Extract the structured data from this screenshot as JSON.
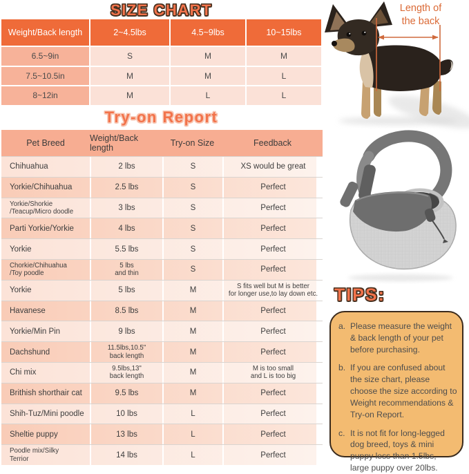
{
  "size_chart": {
    "title": "SIZE CHART",
    "columns": [
      "Weight/Back length",
      "2~4.5lbs",
      "4.5~9lbs",
      "10~15lbs"
    ],
    "rows": [
      {
        "label": "6.5~9in",
        "values": [
          "S",
          "M",
          "M"
        ]
      },
      {
        "label": "7.5~10.5in",
        "values": [
          "M",
          "M",
          "L"
        ]
      },
      {
        "label": "8~12in",
        "values": [
          "M",
          "L",
          "L"
        ]
      }
    ]
  },
  "tryon_report": {
    "title": "Try-on Report",
    "columns": [
      "Pet Breed",
      "Weight/Back length",
      "Try-on Size",
      "Feedback"
    ],
    "rows": [
      {
        "breed": "Chihuahua",
        "weight": "2 lbs",
        "size": "S",
        "feedback": "XS would be great"
      },
      {
        "breed": "Yorkie/Chihuahua",
        "weight": "2.5 lbs",
        "size": "S",
        "feedback": "Perfect"
      },
      {
        "breed": "Yorkie/Shorkie\n/Teacup/Micro doodle",
        "weight": "3 lbs",
        "size": "S",
        "feedback": "Perfect"
      },
      {
        "breed": "Parti Yorkie/Yorkie",
        "weight": "4 lbs",
        "size": "S",
        "feedback": "Perfect"
      },
      {
        "breed": "Yorkie",
        "weight": "5.5 lbs",
        "size": "S",
        "feedback": "Perfect"
      },
      {
        "breed": "Chorkie/Chihuahua\n/Toy poodle",
        "weight": "5 lbs\nand thin",
        "size": "S",
        "feedback": "Perfect"
      },
      {
        "breed": "Yorkie",
        "weight": "5 lbs",
        "size": "M",
        "feedback": "S fits well but M is better\nfor longer use,to lay down etc."
      },
      {
        "breed": "Havanese",
        "weight": "8.5 lbs",
        "size": "M",
        "feedback": "Perfect"
      },
      {
        "breed": "Yorkie/Min Pin",
        "weight": "9 lbs",
        "size": "M",
        "feedback": "Perfect"
      },
      {
        "breed": "Dachshund",
        "weight": "11.5lbs,10.5\"\nback length",
        "size": "M",
        "feedback": "Perfect"
      },
      {
        "breed": "Chi mix",
        "weight": "9.5lbs,13\"\nback length",
        "size": "M",
        "feedback": "M is too small\nand L is too big"
      },
      {
        "breed": "Brithish shorthair cat",
        "weight": "9.5 lbs",
        "size": "M",
        "feedback": "Perfect"
      },
      {
        "breed": "Shih-Tuz/Mini poodle",
        "weight": "10 lbs",
        "size": "L",
        "feedback": "Perfect"
      },
      {
        "breed": "Sheltie puppy",
        "weight": "13 lbs",
        "size": "L",
        "feedback": "Perfect"
      },
      {
        "breed": "Poodle mix/Silky\nTerrior",
        "weight": "14 lbs",
        "size": "L",
        "feedback": "Perfect"
      }
    ]
  },
  "dog_figure": {
    "annotation": "Length of\nthe back"
  },
  "tips": {
    "title": "TIPS:",
    "items": [
      {
        "label": "a.",
        "text": "Please measure the weight & back length of your pet before purchasing."
      },
      {
        "label": "b.",
        "text": "If you are confused about the size chart, please choose the size according to Weight recommendations & Try-on Report."
      },
      {
        "label": "c.",
        "text": "It is not fit for long-legged dog breed, toys & mini puppy less than 1.5lbs, large puppy over 20lbs."
      }
    ]
  },
  "colors": {
    "accent_orange": "#EF6B39",
    "title_orange": "#F2734B",
    "title_outline_dark": "#46301F",
    "title_outline_pale": "#F7C5B2",
    "salmon_header": "#F7AD92",
    "salmon_label_column": "#F7B299",
    "light_pink_cell": "#FBE1D7",
    "row_dark_gradient": [
      "#F9CCB7",
      "#FCE6DB"
    ],
    "row_light_gradient": [
      "#FCE3D8",
      "#FDF2EC"
    ],
    "row_separator": "#D9D4D0",
    "tips_background": "#F3BB71",
    "tips_border": "#3A2A1C",
    "annotation_orange": "#DB6A36",
    "text_dark": "#3E3E3E"
  }
}
